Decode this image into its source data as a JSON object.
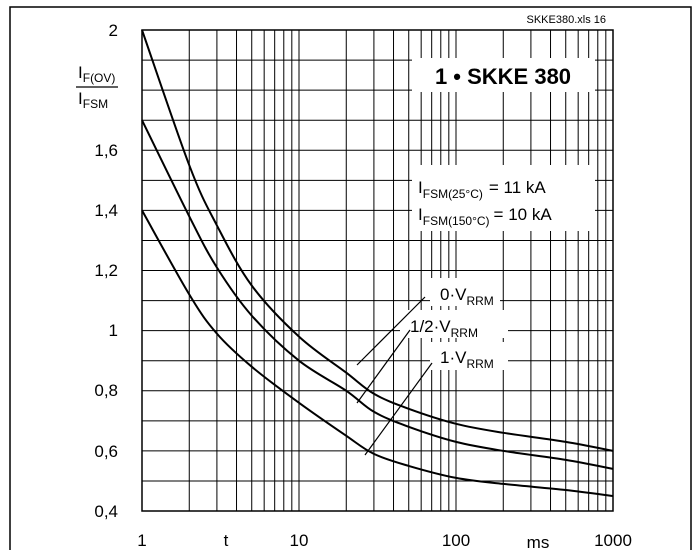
{
  "chart_data": {
    "type": "line",
    "x_scale": "log",
    "xlim": [
      1,
      1000
    ],
    "ylim": [
      0.4,
      2
    ],
    "grid": true,
    "source_note": "SKKE380.xls 16",
    "title": "1 • SKKE 380",
    "ylabel": {
      "main": "I",
      "main_sub": "F(OV)",
      "denom": "I",
      "denom_sub": "FSM"
    },
    "xlabel": "t",
    "xunit": "ms",
    "x_ticks": [
      "1",
      "10",
      "100",
      "1000"
    ],
    "y_ticks": [
      "0,4",
      "0,6",
      "0,8",
      "1",
      "1,2",
      "1,4",
      "1,6",
      "2"
    ],
    "annotations": {
      "ifsm_25": {
        "main": "I",
        "sub": "FSM(25°C)",
        "value": "= 11 kA"
      },
      "ifsm_150": {
        "main": "I",
        "sub": "FSM(150°C)",
        "value": "= 10 kA"
      }
    },
    "series": [
      {
        "name": "0·V",
        "name_sub": "RRM",
        "x": [
          1,
          2,
          3,
          5,
          10,
          20,
          30,
          50,
          100,
          200,
          500,
          1000
        ],
        "y": [
          2.0,
          1.55,
          1.35,
          1.15,
          0.98,
          0.86,
          0.79,
          0.74,
          0.69,
          0.66,
          0.63,
          0.6
        ]
      },
      {
        "name": "1/2·V",
        "name_sub": "RRM",
        "x": [
          1,
          2,
          3,
          5,
          10,
          20,
          30,
          50,
          100,
          200,
          500,
          1000
        ],
        "y": [
          1.7,
          1.38,
          1.21,
          1.05,
          0.9,
          0.8,
          0.73,
          0.68,
          0.63,
          0.6,
          0.57,
          0.54
        ]
      },
      {
        "name": "1·V",
        "name_sub": "RRM",
        "x": [
          1,
          2,
          3,
          5,
          10,
          20,
          30,
          50,
          100,
          200,
          500,
          1000
        ],
        "y": [
          1.4,
          1.12,
          0.99,
          0.88,
          0.76,
          0.65,
          0.59,
          0.55,
          0.51,
          0.49,
          0.47,
          0.45
        ]
      }
    ]
  }
}
